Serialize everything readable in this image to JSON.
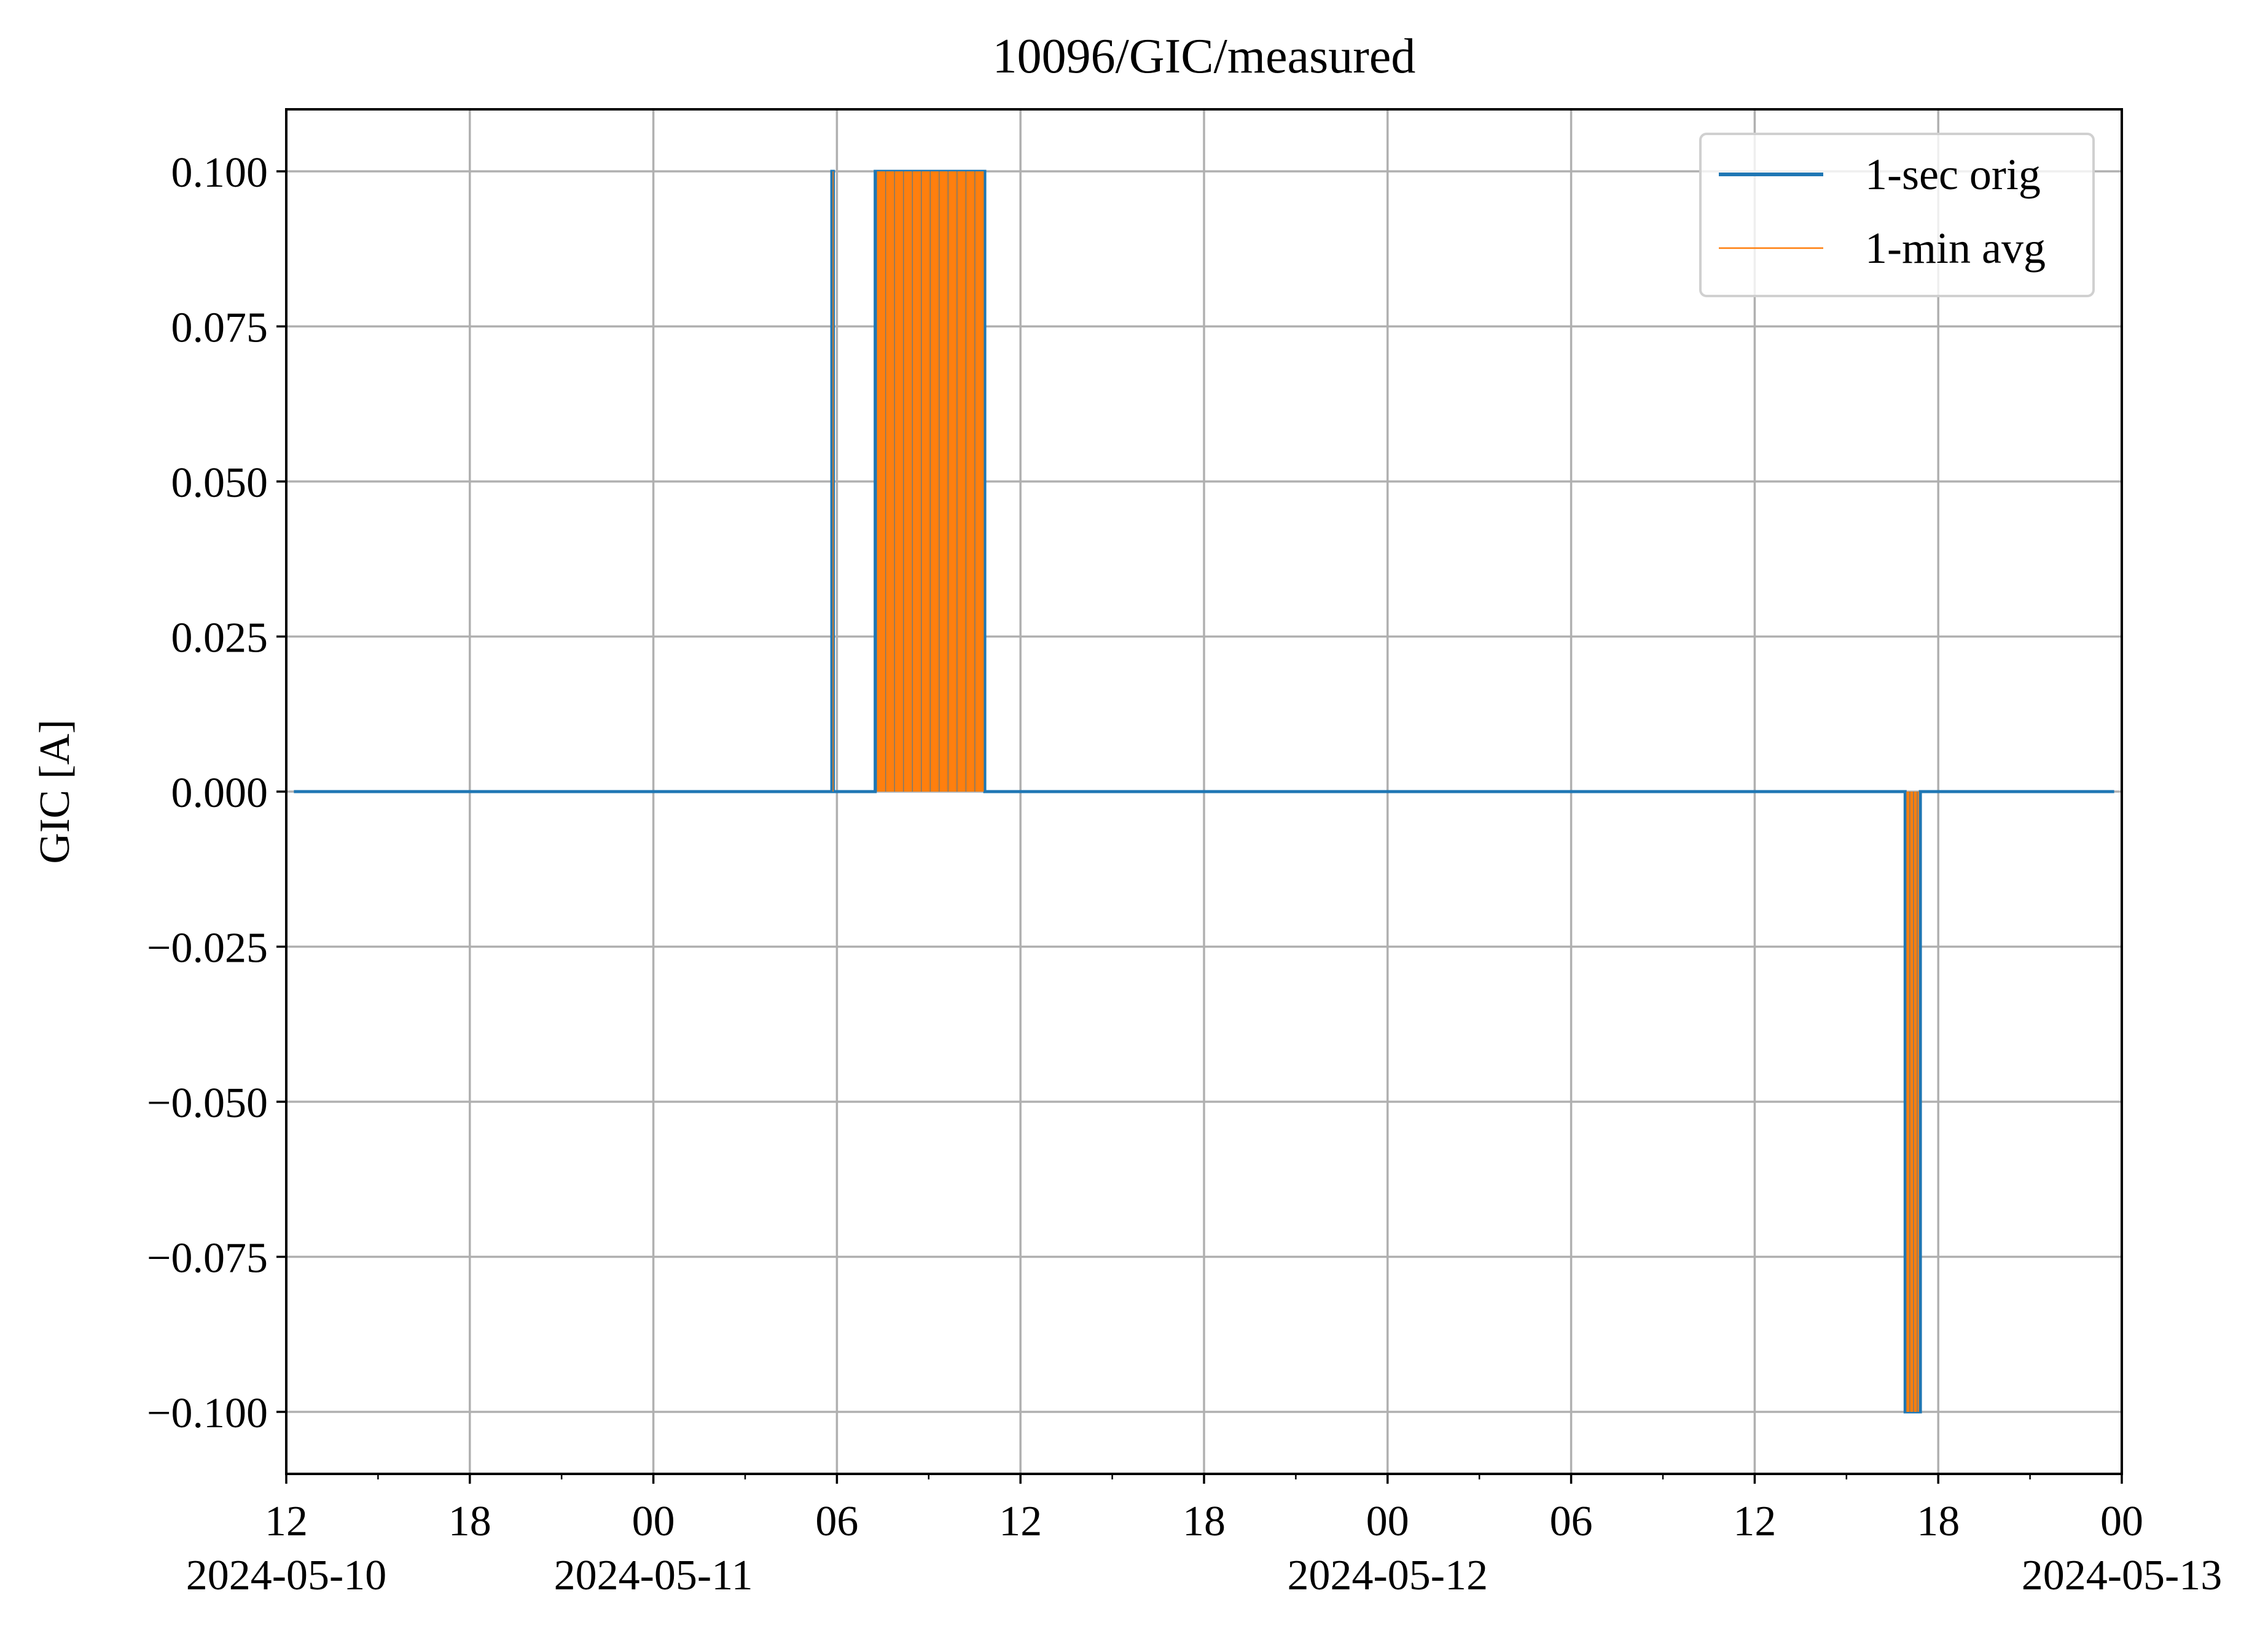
{
  "chart_data": {
    "type": "line",
    "title": "10096/GIC/measured",
    "ylabel": "GIC [A]",
    "xlabel": "",
    "xlim": [
      "2024-05-10 12:00",
      "2024-05-13 00:00"
    ],
    "ylim": [
      -0.11,
      0.11
    ],
    "grid": true,
    "legend_position": "top-right",
    "y_ticks": [
      0.1,
      0.075,
      0.05,
      0.025,
      0.0,
      -0.025,
      -0.05,
      -0.075,
      -0.1
    ],
    "y_tick_labels": [
      "0.100",
      "0.075",
      "0.050",
      "0.025",
      "0.000",
      "−0.025",
      "−0.050",
      "−0.075",
      "−0.100"
    ],
    "x_ticks": [
      {
        "time": "2024-05-10 12:00",
        "hour": "12",
        "date": "2024-05-10"
      },
      {
        "time": "2024-05-10 18:00",
        "hour": "18",
        "date": ""
      },
      {
        "time": "2024-05-11 00:00",
        "hour": "00",
        "date": "2024-05-11"
      },
      {
        "time": "2024-05-11 06:00",
        "hour": "06",
        "date": ""
      },
      {
        "time": "2024-05-11 12:00",
        "hour": "12",
        "date": ""
      },
      {
        "time": "2024-05-11 18:00",
        "hour": "18",
        "date": ""
      },
      {
        "time": "2024-05-12 00:00",
        "hour": "00",
        "date": "2024-05-12"
      },
      {
        "time": "2024-05-12 06:00",
        "hour": "06",
        "date": ""
      },
      {
        "time": "2024-05-12 12:00",
        "hour": "12",
        "date": ""
      },
      {
        "time": "2024-05-12 18:00",
        "hour": "18",
        "date": ""
      },
      {
        "time": "2024-05-13 00:00",
        "hour": "00",
        "date": "2024-05-13"
      }
    ],
    "series": [
      {
        "name": "1-sec orig",
        "color": "#1f77b4",
        "x": [
          "2024-05-10 12:15",
          "2024-05-11 05:50",
          "2024-05-11 05:50",
          "2024-05-11 05:53",
          "2024-05-11 05:53",
          "2024-05-11 07:15",
          "2024-05-11 07:15",
          "2024-05-11 10:50",
          "2024-05-11 10:50",
          "2024-05-12 16:55",
          "2024-05-12 16:55",
          "2024-05-12 17:25",
          "2024-05-12 17:25",
          "2024-05-12 23:45"
        ],
        "y": [
          0.0,
          0.0,
          0.1,
          0.1,
          0.0,
          0.0,
          0.1,
          0.1,
          0.0,
          0.0,
          -0.1,
          -0.1,
          0.0,
          0.0
        ]
      },
      {
        "name": "1-min avg",
        "color": "#ff7f0e",
        "bands": [
          {
            "start": "2024-05-11 05:51",
            "end": "2024-05-11 05:53",
            "value": 0.1
          },
          {
            "start": "2024-05-11 07:18",
            "end": "2024-05-11 10:48",
            "value": 0.1
          },
          {
            "start": "2024-05-12 16:57",
            "end": "2024-05-12 17:22",
            "value": -0.1
          }
        ]
      }
    ]
  }
}
